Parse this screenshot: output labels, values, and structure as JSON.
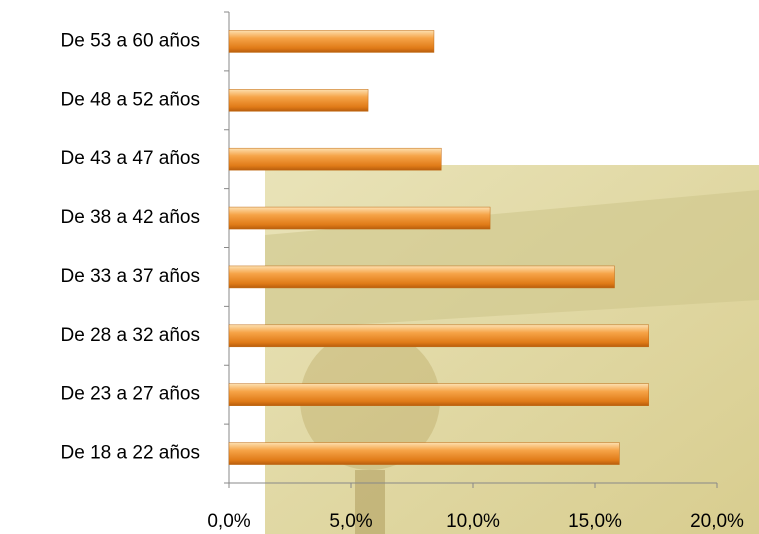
{
  "chart_data": {
    "type": "bar",
    "orientation": "horizontal",
    "categories": [
      "De 18 a 22 años",
      "De 23 a 27 años",
      "De 28 a 32 años",
      "De 33 a 37 años",
      "De 38 a 42 años",
      "De 43 a 47 años",
      "De 48 a 52 años",
      "De 53 a 60 años"
    ],
    "values": [
      16.0,
      17.2,
      17.2,
      15.8,
      10.7,
      8.7,
      5.7,
      8.4
    ],
    "color": "#f39a3a",
    "xlim": [
      0,
      20
    ],
    "xticks": [
      {
        "value": 0,
        "label": "0,0%"
      },
      {
        "value": 5,
        "label": "5,0%"
      },
      {
        "value": 10,
        "label": "10,0%"
      },
      {
        "value": 15,
        "label": "15,0%"
      },
      {
        "value": 20,
        "label": "20,0%"
      }
    ],
    "grid": false
  }
}
